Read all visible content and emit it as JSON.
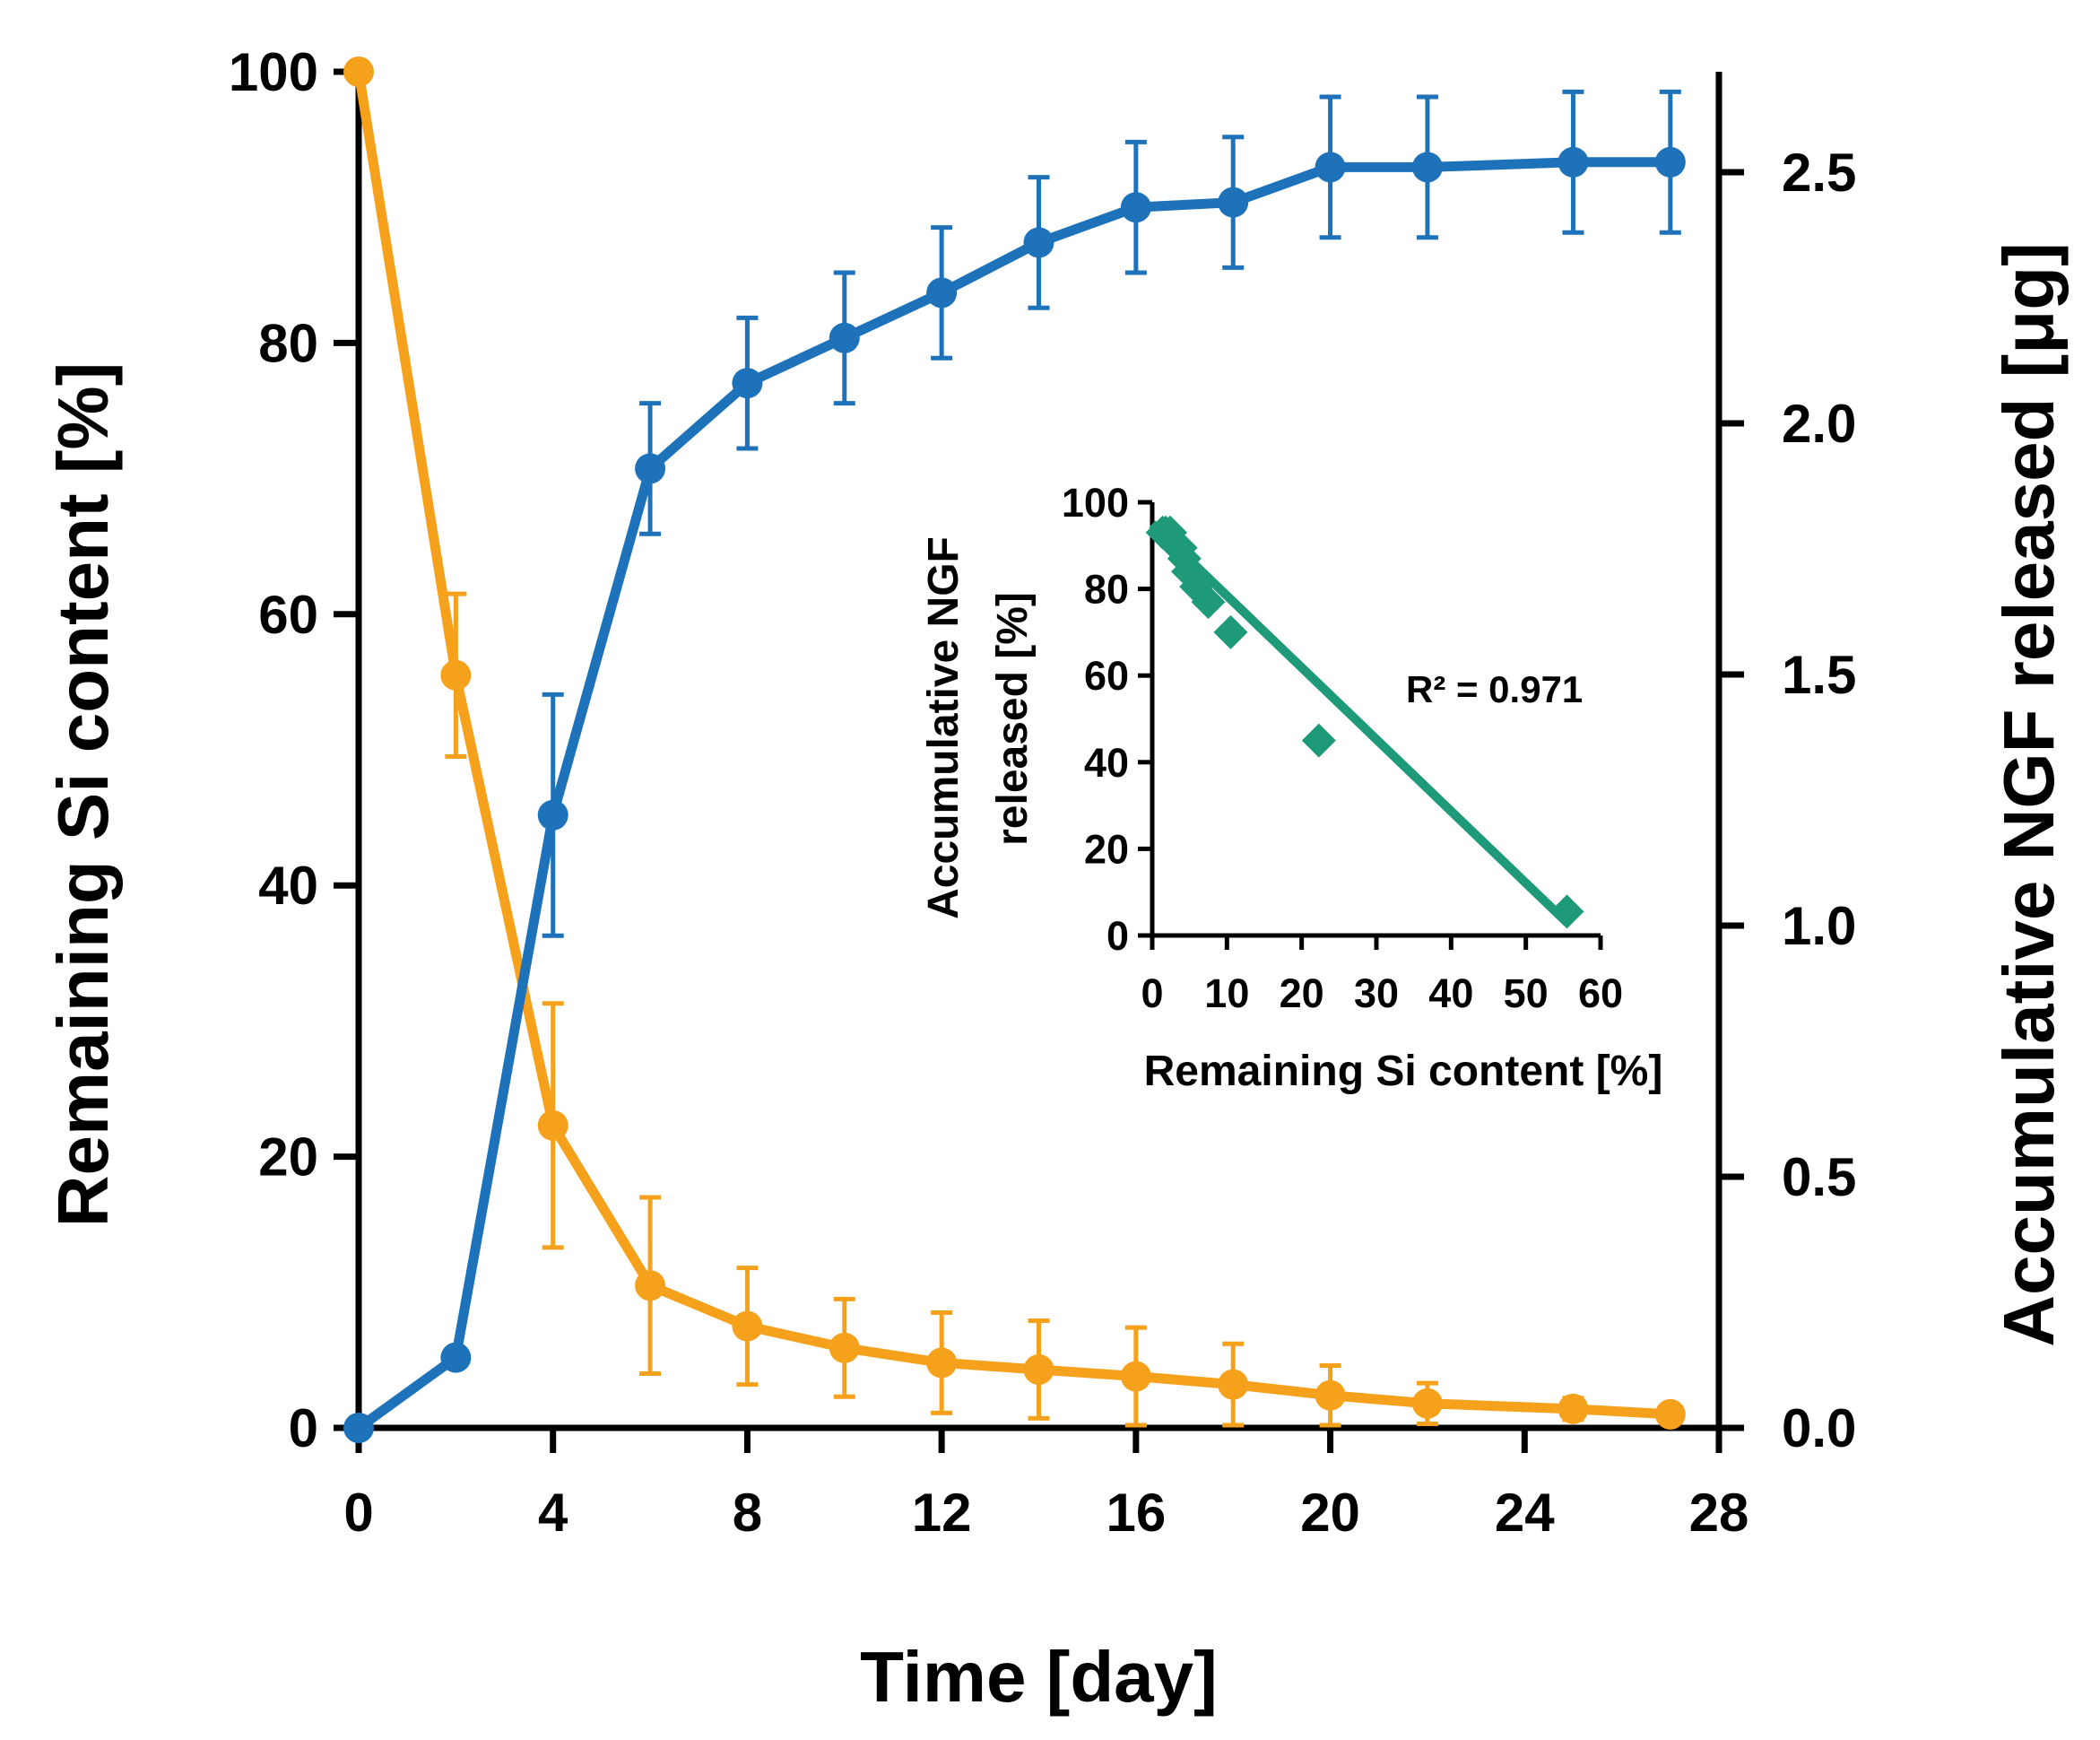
{
  "chart_data": [
    {
      "type": "line",
      "id": "main",
      "xlabel": "Time [day]",
      "ylabel": "Remaining Si content [%]",
      "y2label": "Accumulative NGF released [μg]",
      "xlim": [
        0,
        28
      ],
      "ylim": [
        0,
        100
      ],
      "y2lim": [
        0,
        2.7
      ],
      "xticks": [
        "0",
        "4",
        "8",
        "12",
        "16",
        "20",
        "24",
        "28"
      ],
      "yticks": [
        "0",
        "20",
        "40",
        "60",
        "80",
        "100"
      ],
      "y2ticks": [
        "0.0",
        "0.5",
        "1.0",
        "1.5",
        "2.0",
        "2.5"
      ],
      "series": [
        {
          "name": "Remaining Si content",
          "axis": "left",
          "color": "#F5A11C",
          "x": [
            0,
            2,
            4,
            6,
            8,
            10,
            12,
            14,
            16,
            18,
            20,
            22,
            25,
            27
          ],
          "y": [
            100,
            55.5,
            22.3,
            10.5,
            7.5,
            5.9,
            4.8,
            4.3,
            3.8,
            3.2,
            2.4,
            1.8,
            1.4,
            1.0
          ],
          "err": [
            0,
            6,
            9,
            6.5,
            4.3,
            3.6,
            3.7,
            3.6,
            3.6,
            3.0,
            2.2,
            1.5,
            0.8,
            0.5
          ]
        },
        {
          "name": "Accumulative NGF released",
          "axis": "right",
          "color": "#1E72BA",
          "x": [
            0,
            2,
            4,
            6,
            8,
            10,
            12,
            14,
            16,
            18,
            20,
            22,
            25,
            27
          ],
          "y": [
            0.0,
            0.14,
            1.22,
            1.91,
            2.08,
            2.17,
            2.26,
            2.36,
            2.43,
            2.44,
            2.51,
            2.51,
            2.52,
            2.52
          ],
          "err": [
            0,
            0,
            0.24,
            0.13,
            0.13,
            0.13,
            0.13,
            0.13,
            0.13,
            0.13,
            0.14,
            0.14,
            0.14,
            0.14
          ]
        }
      ]
    },
    {
      "type": "scatter",
      "id": "inset",
      "xlabel": "Remaining Si content [%]",
      "ylabel_line1": "Accumulative NGF",
      "ylabel_line2": "released [%]",
      "xlim": [
        0,
        60
      ],
      "ylim": [
        0,
        100
      ],
      "xticks": [
        "0",
        "10",
        "20",
        "30",
        "40",
        "50",
        "60"
      ],
      "yticks": [
        "0",
        "20",
        "40",
        "60",
        "80",
        "100"
      ],
      "color": "#1E9A78",
      "points": [
        {
          "x": 55.5,
          "y": 5.5
        },
        {
          "x": 22.3,
          "y": 45
        },
        {
          "x": 10.5,
          "y": 70
        },
        {
          "x": 7.5,
          "y": 77
        },
        {
          "x": 5.9,
          "y": 80.5
        },
        {
          "x": 4.8,
          "y": 84
        },
        {
          "x": 4.3,
          "y": 87
        },
        {
          "x": 3.8,
          "y": 89.5
        },
        {
          "x": 3.2,
          "y": 90
        },
        {
          "x": 2.4,
          "y": 93
        },
        {
          "x": 1.8,
          "y": 93
        },
        {
          "x": 1.4,
          "y": 93
        }
      ],
      "fit": {
        "x0": 0,
        "y0": 95,
        "x1": 55.5,
        "y1": 3
      },
      "annotation": "R² = 0.971"
    }
  ]
}
